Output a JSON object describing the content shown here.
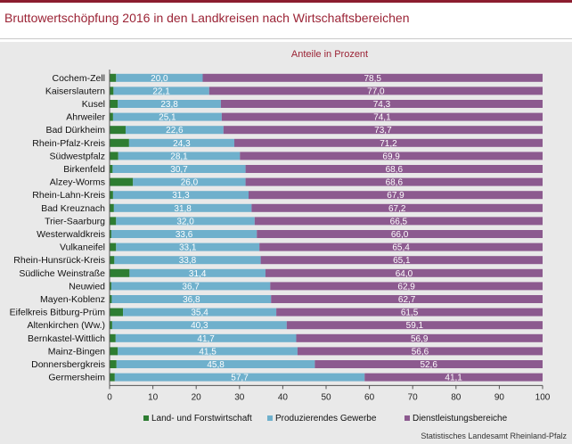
{
  "title": "Bruttowertschöpfung 2016 in den Landkreisen nach Wirtschaftsbereichen",
  "source": "Statistisches Landesamt Rheinland-Pfalz",
  "chart_data": {
    "type": "bar",
    "orientation": "horizontal",
    "stacked": true,
    "subtitle": "Anteile in Prozent",
    "xlim": [
      0,
      100
    ],
    "xticks": [
      0,
      10,
      20,
      30,
      40,
      50,
      60,
      70,
      80,
      90,
      100
    ],
    "grid": false,
    "legend_position": "bottom",
    "categories": [
      "Cochem-Zell",
      "Kaiserslautern",
      "Kusel",
      "Ahrweiler",
      "Bad Dürkheim",
      "Rhein-Pfalz-Kreis",
      "Südwestpfalz",
      "Birkenfeld",
      "Alzey-Worms",
      "Rhein-Lahn-Kreis",
      "Bad Kreuznach",
      "Trier-Saarburg",
      "Westerwaldkreis",
      "Vulkaneifel",
      "Rhein-Hunsrück-Kreis",
      "Südliche Weinstraße",
      "Neuwied",
      "Mayen-Koblenz",
      "Eifelkreis Bitburg-Prüm",
      "Altenkirchen (Ww.)",
      "Bernkastel-Wittlich",
      "Mainz-Bingen",
      "Donnersbergkreis",
      "Germersheim"
    ],
    "series": [
      {
        "name": "Land- und Forstwirtschaft",
        "color": "#2e7d32",
        "values": [
          1.5,
          0.9,
          1.9,
          0.8,
          3.7,
          4.5,
          2.0,
          0.7,
          5.4,
          0.8,
          1.0,
          1.5,
          0.4,
          1.5,
          1.1,
          4.6,
          0.4,
          0.5,
          3.1,
          0.6,
          1.4,
          1.9,
          1.6,
          1.2
        ],
        "labels": [
          "",
          "",
          "",
          "",
          "",
          "",
          "",
          "",
          "",
          "",
          "",
          "",
          "",
          "",
          "",
          "",
          "",
          "",
          "",
          "",
          "",
          "",
          "",
          ""
        ]
      },
      {
        "name": "Produzierendes Gewerbe",
        "color": "#6fb0cc",
        "values": [
          20.0,
          22.1,
          23.8,
          25.1,
          22.6,
          24.3,
          28.1,
          30.7,
          26.0,
          31.3,
          31.8,
          32.0,
          33.6,
          33.1,
          33.8,
          31.4,
          36.7,
          36.8,
          35.4,
          40.3,
          41.7,
          41.5,
          45.8,
          57.7
        ],
        "labels": [
          "20,0",
          "22,1",
          "23,8",
          "25,1",
          "22,6",
          "24,3",
          "28,1",
          "30,7",
          "26,0",
          "31,3",
          "31,8",
          "32,0",
          "33,6",
          "33,1",
          "33,8",
          "31,4",
          "36,7",
          "36,8",
          "35,4",
          "40,3",
          "41,7",
          "41,5",
          "45,8",
          "57,7"
        ]
      },
      {
        "name": "Dienstleistungsbereiche",
        "color": "#8c5a8f",
        "values": [
          78.5,
          77.0,
          74.3,
          74.1,
          73.7,
          71.2,
          69.9,
          68.6,
          68.6,
          67.9,
          67.2,
          66.5,
          66.0,
          65.4,
          65.1,
          64.0,
          62.9,
          62.7,
          61.5,
          59.1,
          56.9,
          56.6,
          52.6,
          41.1
        ],
        "labels": [
          "78,5",
          "77,0",
          "74,3",
          "74,1",
          "73,7",
          "71,2",
          "69,9",
          "68,6",
          "68,6",
          "67,9",
          "67,2",
          "66,5",
          "66,0",
          "65,4",
          "65,1",
          "64,0",
          "62,9",
          "62,7",
          "61,5",
          "59,1",
          "56,9",
          "56,6",
          "52,6",
          "41,1"
        ]
      }
    ]
  }
}
